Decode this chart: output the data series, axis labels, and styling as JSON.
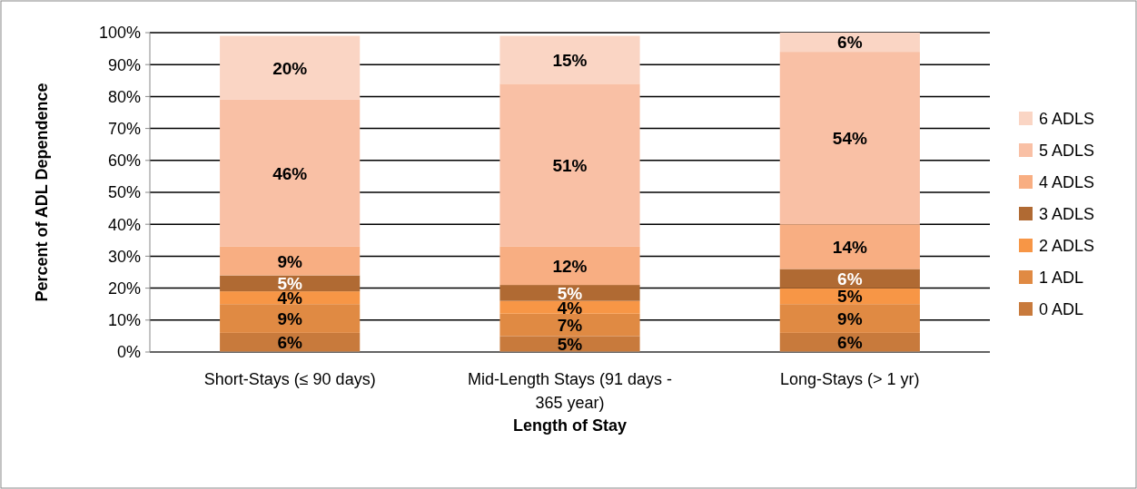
{
  "chart_data": {
    "type": "bar",
    "stacked": true,
    "xlabel": "Length of Stay",
    "ylabel": "Percent of ADL Dependence",
    "categories": [
      "Short-Stays (≤ 90 days)",
      "Mid-Length Stays (91 days - 365 year)",
      "Long-Stays (> 1 yr)"
    ],
    "series": [
      {
        "name": "0 ADL",
        "color": "#c87a3c",
        "values": [
          6,
          5,
          6
        ],
        "value_labels": [
          "6%",
          "5%",
          "6%"
        ]
      },
      {
        "name": "1 ADL",
        "color": "#e08a43",
        "values": [
          9,
          7,
          9
        ],
        "value_labels": [
          "9%",
          "7%",
          "9%"
        ]
      },
      {
        "name": "2 ADLS",
        "color": "#f79646",
        "values": [
          4,
          4,
          5
        ],
        "value_labels": [
          "4%",
          "4%",
          "5%"
        ]
      },
      {
        "name": "3 ADLS",
        "color": "#b06a33",
        "values": [
          5,
          5,
          6
        ],
        "value_labels": [
          "5%",
          "5%",
          "6%"
        ]
      },
      {
        "name": "4 ADLS",
        "color": "#f8ae82",
        "values": [
          9,
          12,
          14
        ],
        "value_labels": [
          "9%",
          "12%",
          "14%"
        ]
      },
      {
        "name": "5 ADLS",
        "color": "#f9c0a5",
        "values": [
          46,
          51,
          54
        ],
        "value_labels": [
          "46%",
          "51%",
          "54%"
        ]
      },
      {
        "name": "6 ADLS",
        "color": "#fad5c4",
        "values": [
          20,
          15,
          6
        ],
        "value_labels": [
          "20%",
          "15%",
          "6%"
        ]
      }
    ],
    "ylim": [
      0,
      100
    ],
    "yticks": [
      {
        "value": 0,
        "label": "0%"
      },
      {
        "value": 10,
        "label": "10%"
      },
      {
        "value": 20,
        "label": "20%"
      },
      {
        "value": 30,
        "label": "30%"
      },
      {
        "value": 40,
        "label": "40%"
      },
      {
        "value": 50,
        "label": "50%"
      },
      {
        "value": 60,
        "label": "60%"
      },
      {
        "value": 70,
        "label": "70%"
      },
      {
        "value": 80,
        "label": "80%"
      },
      {
        "value": 90,
        "label": "90%"
      },
      {
        "value": 100,
        "label": "100%"
      }
    ],
    "grid": "y",
    "legend": "right"
  }
}
